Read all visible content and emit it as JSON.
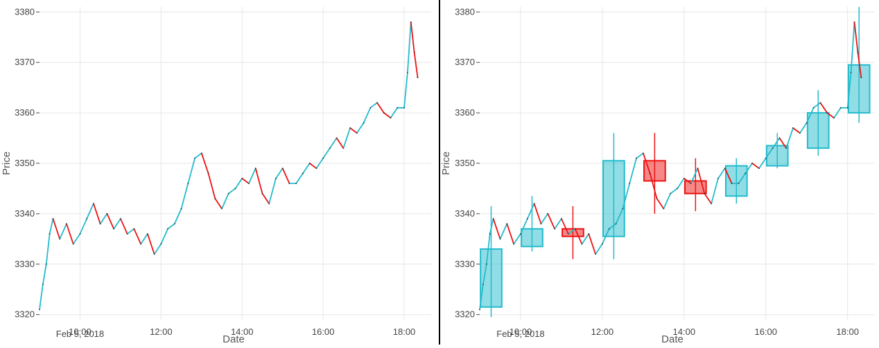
{
  "colors": {
    "up": "#22bbcc",
    "down": "#ee1111",
    "grid": "#e6e6e6",
    "divider": "#000000"
  },
  "chart_data": [
    {
      "type": "line",
      "xlabel": "Date",
      "ylabel": "Price",
      "x_sublabel": "Feb 5, 2018",
      "grid": true,
      "ylim": [
        3319,
        3381
      ],
      "y_ticks": [
        3320,
        3330,
        3340,
        3350,
        3360,
        3370,
        3380
      ],
      "y_tick_labels": [
        "3320",
        "3330",
        "3340",
        "3350",
        "3360",
        "3370",
        "3380"
      ],
      "x_ticks": [
        "10:00",
        "12:00",
        "14:00",
        "16:00",
        "18:00"
      ],
      "x_range": [
        "09:00",
        "18:40"
      ],
      "series": [
        {
          "x": [
            "09:00",
            "09:05",
            "09:10",
            "09:15",
            "09:20",
            "09:30",
            "09:40",
            "09:50",
            "10:00",
            "10:10",
            "10:20",
            "10:30",
            "10:40",
            "10:50",
            "11:00",
            "11:10",
            "11:20",
            "11:30",
            "11:40",
            "11:50",
            "12:00",
            "12:10",
            "12:20",
            "12:30",
            "12:40",
            "12:50",
            "13:00",
            "13:10",
            "13:20",
            "13:30",
            "13:40",
            "13:50",
            "14:00",
            "14:10",
            "14:20",
            "14:30",
            "14:40",
            "14:50",
            "15:00",
            "15:10",
            "15:20",
            "15:30",
            "15:40",
            "15:50",
            "16:00",
            "16:10",
            "16:20",
            "16:30",
            "16:40",
            "16:50",
            "17:00",
            "17:10",
            "17:20",
            "17:30",
            "17:40",
            "17:50",
            "18:00",
            "18:05",
            "18:10",
            "18:15",
            "18:20"
          ],
          "values": [
            3321,
            3326,
            3330,
            3336,
            3339,
            3335,
            3338,
            3334,
            3336,
            3339,
            3342,
            3338,
            3340,
            3337,
            3339,
            3336,
            3337,
            3334,
            3336,
            3332,
            3334,
            3337,
            3338,
            3341,
            3346,
            3351,
            3352,
            3348,
            3343,
            3341,
            3344,
            3345,
            3347,
            3346,
            3349,
            3344,
            3342,
            3347,
            3349,
            3346,
            3346,
            3348,
            3350,
            3349,
            3351,
            3353,
            3355,
            3353,
            3357,
            3356,
            3358,
            3361,
            3362,
            3360,
            3359,
            3361,
            3361,
            3368,
            3378,
            3372,
            3367
          ]
        }
      ]
    },
    {
      "type": "candlestick",
      "xlabel": "Date",
      "ylabel": "Price",
      "x_sublabel": "Feb 5, 2018",
      "grid": true,
      "ylim": [
        3319,
        3381
      ],
      "y_ticks": [
        3320,
        3330,
        3340,
        3350,
        3360,
        3370,
        3380
      ],
      "y_tick_labels": [
        "3320",
        "3330",
        "3340",
        "3350",
        "3360",
        "3370",
        "3380"
      ],
      "x_ticks": [
        "10:00",
        "12:00",
        "14:00",
        "16:00",
        "18:00"
      ],
      "x_range": [
        "09:00",
        "18:40"
      ],
      "candles": [
        {
          "t": "09:00",
          "open": 3321.5,
          "high": 3341.5,
          "low": 3319.5,
          "close": 3333
        },
        {
          "t": "10:00",
          "open": 3333.5,
          "high": 3343.5,
          "low": 3332.5,
          "close": 3337
        },
        {
          "t": "11:00",
          "open": 3337,
          "high": 3341.5,
          "low": 3331,
          "close": 3335.5
        },
        {
          "t": "12:00",
          "open": 3335.5,
          "high": 3356,
          "low": 3331,
          "close": 3350.5
        },
        {
          "t": "13:00",
          "open": 3350.5,
          "high": 3356,
          "low": 3340,
          "close": 3346.5
        },
        {
          "t": "14:00",
          "open": 3346.5,
          "high": 3351,
          "low": 3340.5,
          "close": 3344
        },
        {
          "t": "15:00",
          "open": 3343.5,
          "high": 3351,
          "low": 3342,
          "close": 3349.5
        },
        {
          "t": "16:00",
          "open": 3349.5,
          "high": 3356,
          "low": 3349,
          "close": 3353.5
        },
        {
          "t": "17:00",
          "open": 3353,
          "high": 3364.5,
          "low": 3351.5,
          "close": 3360
        },
        {
          "t": "18:00",
          "open": 3360,
          "high": 3381,
          "low": 3358,
          "close": 3369.5
        }
      ],
      "series": [
        {
          "x": [
            "09:00",
            "09:05",
            "09:10",
            "09:15",
            "09:20",
            "09:30",
            "09:40",
            "09:50",
            "10:00",
            "10:10",
            "10:20",
            "10:30",
            "10:40",
            "10:50",
            "11:00",
            "11:10",
            "11:20",
            "11:30",
            "11:40",
            "11:50",
            "12:00",
            "12:10",
            "12:20",
            "12:30",
            "12:40",
            "12:50",
            "13:00",
            "13:10",
            "13:20",
            "13:30",
            "13:40",
            "13:50",
            "14:00",
            "14:10",
            "14:20",
            "14:30",
            "14:40",
            "14:50",
            "15:00",
            "15:10",
            "15:20",
            "15:30",
            "15:40",
            "15:50",
            "16:00",
            "16:10",
            "16:20",
            "16:30",
            "16:40",
            "16:50",
            "17:00",
            "17:10",
            "17:20",
            "17:30",
            "17:40",
            "17:50",
            "18:00",
            "18:05",
            "18:10",
            "18:15",
            "18:20"
          ],
          "values": [
            3321,
            3326,
            3330,
            3336,
            3339,
            3335,
            3338,
            3334,
            3336,
            3339,
            3342,
            3338,
            3340,
            3337,
            3339,
            3336,
            3337,
            3334,
            3336,
            3332,
            3334,
            3337,
            3338,
            3341,
            3346,
            3351,
            3352,
            3348,
            3343,
            3341,
            3344,
            3345,
            3347,
            3346,
            3349,
            3344,
            3342,
            3347,
            3349,
            3346,
            3346,
            3348,
            3350,
            3349,
            3351,
            3353,
            3355,
            3353,
            3357,
            3356,
            3358,
            3361,
            3362,
            3360,
            3359,
            3361,
            3361,
            3368,
            3378,
            3372,
            3367
          ]
        }
      ]
    }
  ]
}
